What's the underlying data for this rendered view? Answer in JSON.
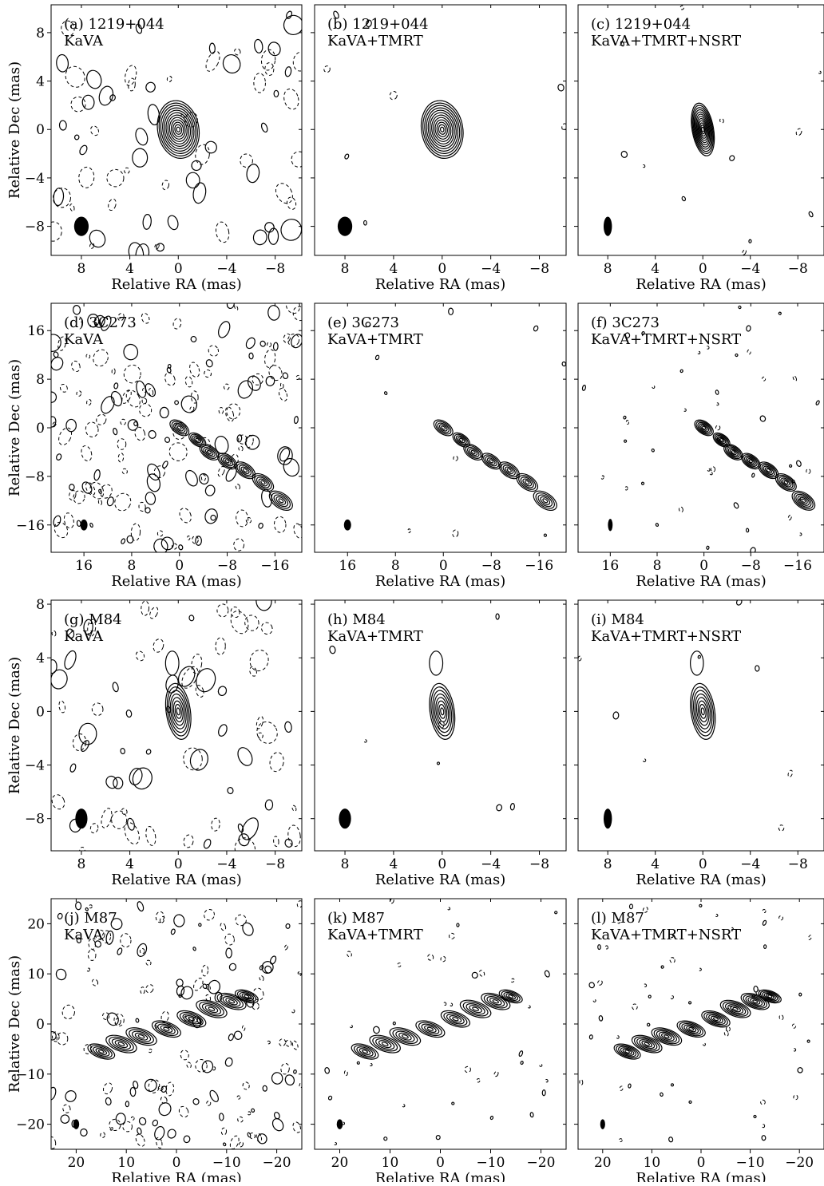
{
  "figure": {
    "panels": [
      {
        "id": "a",
        "label": "(a) 1219+044",
        "array": "KaVA",
        "x_ticks": [
          "8",
          "4",
          "0",
          "−4",
          "−8"
        ],
        "y_ticks": [
          "8",
          "4",
          "0",
          "−4",
          "−8"
        ],
        "x_values": [
          8,
          4,
          0,
          -4,
          -8
        ],
        "y_values": [
          8,
          4,
          0,
          -4,
          -8
        ]
      },
      {
        "id": "b",
        "label": "(b) 1219+044",
        "array": "KaVA+TMRT",
        "x_ticks": [
          "8",
          "4",
          "0",
          "−4",
          "−8"
        ],
        "y_ticks": [],
        "x_values": [
          8,
          4,
          0,
          -4,
          -8
        ],
        "y_values": [
          8,
          4,
          0,
          -4,
          -8
        ]
      },
      {
        "id": "c",
        "label": "(c) 1219+044",
        "array": "KaVA+TMRT+NSRT",
        "x_ticks": [
          "8",
          "4",
          "0",
          "−4",
          "−8"
        ],
        "y_ticks": [],
        "x_values": [
          8,
          4,
          0,
          -4,
          -8
        ],
        "y_values": [
          8,
          4,
          0,
          -4,
          -8
        ]
      },
      {
        "id": "d",
        "label": "(d) 3C273",
        "array": "KaVA",
        "x_ticks": [
          "16",
          "8",
          "0",
          "−8",
          "−16"
        ],
        "y_ticks": [
          "16",
          "8",
          "0",
          "−8",
          "−16"
        ],
        "x_values": [
          16,
          8,
          0,
          -8,
          -16
        ],
        "y_values": [
          16,
          8,
          0,
          -8,
          -16
        ]
      },
      {
        "id": "e",
        "label": "(e) 3C273",
        "array": "KaVA+TMRT",
        "x_ticks": [
          "16",
          "8",
          "0",
          "−8",
          "−16"
        ],
        "y_ticks": [],
        "x_values": [
          16,
          8,
          0,
          -8,
          -16
        ],
        "y_values": [
          16,
          8,
          0,
          -8,
          -16
        ]
      },
      {
        "id": "f",
        "label": "(f) 3C273",
        "array": "KaVA+TMRT+NSRT",
        "x_ticks": [
          "16",
          "8",
          "0",
          "−8",
          "−16"
        ],
        "y_ticks": [],
        "x_values": [
          16,
          8,
          0,
          -8,
          -16
        ],
        "y_values": [
          16,
          8,
          0,
          -8,
          -16
        ]
      },
      {
        "id": "g",
        "label": "(g) M84",
        "array": "KaVA",
        "x_ticks": [
          "8",
          "4",
          "0",
          "−4",
          "−8"
        ],
        "y_ticks": [
          "8",
          "4",
          "0",
          "−4",
          "−8"
        ],
        "x_values": [
          8,
          4,
          0,
          -4,
          -8
        ],
        "y_values": [
          8,
          4,
          0,
          -4,
          -8
        ]
      },
      {
        "id": "h",
        "label": "(h) M84",
        "array": "KaVA+TMRT",
        "x_ticks": [
          "8",
          "4",
          "0",
          "−4",
          "−8"
        ],
        "y_ticks": [],
        "x_values": [
          8,
          4,
          0,
          -4,
          -8
        ],
        "y_values": [
          8,
          4,
          0,
          -4,
          -8
        ]
      },
      {
        "id": "i",
        "label": "(i) M84",
        "array": "KaVA+TMRT+NSRT",
        "x_ticks": [
          "8",
          "4",
          "0",
          "−4",
          "−8"
        ],
        "y_ticks": [],
        "x_values": [
          8,
          4,
          0,
          -4,
          -8
        ],
        "y_values": [
          8,
          4,
          0,
          -4,
          -8
        ]
      },
      {
        "id": "j",
        "label": "(j) M87",
        "array": "KaVA",
        "x_ticks": [
          "20",
          "10",
          "0",
          "−10",
          "−20"
        ],
        "y_ticks": [
          "20",
          "10",
          "0",
          "−10",
          "−20"
        ],
        "x_values": [
          20,
          10,
          0,
          -10,
          -20
        ],
        "y_values": [
          20,
          10,
          0,
          -10,
          -20
        ]
      },
      {
        "id": "k",
        "label": "(k) M87",
        "array": "KaVA+TMRT",
        "x_ticks": [
          "20",
          "10",
          "0",
          "−10",
          "−20"
        ],
        "y_ticks": [],
        "x_values": [
          20,
          10,
          0,
          -10,
          -20
        ],
        "y_values": [
          20,
          10,
          0,
          -10,
          -20
        ]
      },
      {
        "id": "l",
        "label": "(l) M87",
        "array": "KaVA+TMRT+NSRT",
        "x_ticks": [
          "20",
          "10",
          "0",
          "−10",
          "−20"
        ],
        "y_ticks": [],
        "x_values": [
          20,
          10,
          0,
          -10,
          -20
        ],
        "y_values": [
          20,
          10,
          0,
          -10,
          -20
        ]
      }
    ],
    "xlabel": "Relative RA (mas)",
    "ylabel": "Relative Dec (mas)"
  }
}
